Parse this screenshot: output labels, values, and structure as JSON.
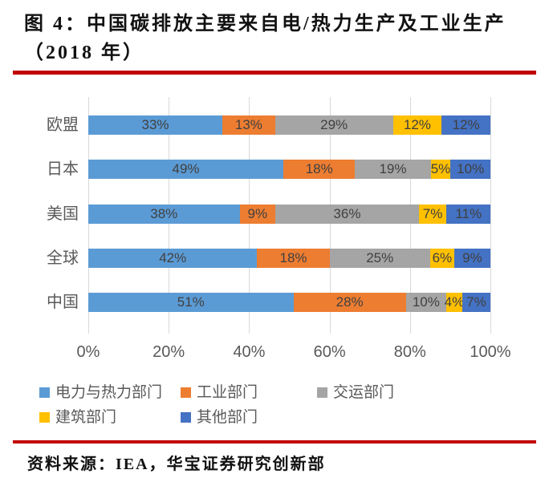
{
  "title": {
    "line1": "图 4：中国碳排放主要来自电/热力生产及工业生产",
    "line2": "（2018 年）"
  },
  "source": "资料来源：IEA，华宝证券研究创新部",
  "colors": {
    "accent_rule": "#c00000",
    "gridline": "#d9d9d9",
    "axis_text": "#595959",
    "data_label_text": "#404040"
  },
  "chart_data": {
    "type": "bar",
    "orientation": "horizontal-stacked",
    "categories": [
      "欧盟",
      "日本",
      "美国",
      "全球",
      "中国"
    ],
    "series": [
      {
        "name": "电力与热力部门",
        "color": "#5b9bd5",
        "values": [
          33,
          49,
          38,
          42,
          51
        ]
      },
      {
        "name": "工业部门",
        "color": "#ed7d31",
        "values": [
          13,
          18,
          9,
          18,
          28
        ]
      },
      {
        "name": "交运部门",
        "color": "#a5a5a5",
        "values": [
          29,
          19,
          36,
          25,
          10
        ]
      },
      {
        "name": "建筑部门",
        "color": "#ffc000",
        "values": [
          12,
          5,
          7,
          6,
          4
        ]
      },
      {
        "name": "其他部门",
        "color": "#4472c4",
        "values": [
          12,
          10,
          11,
          9,
          7
        ]
      }
    ],
    "value_suffix": "%",
    "x_ticks": [
      "0%",
      "20%",
      "40%",
      "60%",
      "80%",
      "100%"
    ],
    "xlim": [
      0,
      100
    ],
    "grid": true,
    "legend_position": "bottom"
  }
}
